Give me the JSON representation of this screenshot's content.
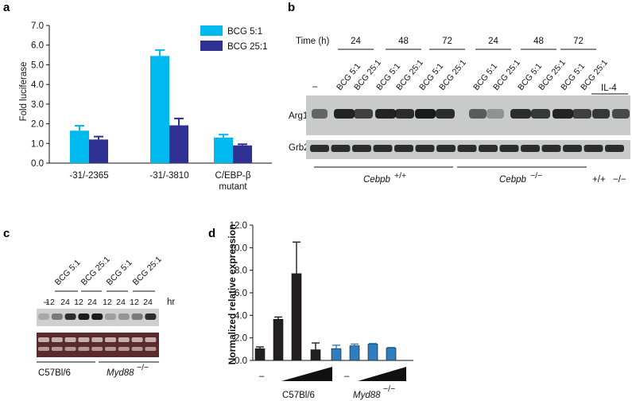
{
  "panels": {
    "a": "a",
    "b": "b",
    "c": "c",
    "d": "d"
  },
  "chart_data": [
    {
      "panel": "a",
      "type": "bar",
      "ylabel": "Fold luciferase",
      "ylim": [
        0,
        7
      ],
      "yticks": [
        "0.0",
        "1.0",
        "2.0",
        "3.0",
        "4.0",
        "5.0",
        "6.0",
        "7.0"
      ],
      "categories": [
        "-31/-2365",
        "-31/-3810",
        "C/EBP-β mutant"
      ],
      "category_lines": [
        [
          "-31/-2365"
        ],
        [
          "-31/-3810"
        ],
        [
          "C/EBP-β",
          "mutant"
        ]
      ],
      "legend_position": "top-right",
      "series": [
        {
          "name": "BCG 5:1",
          "color": "#00b9ef",
          "values": [
            1.65,
            5.45,
            1.3
          ],
          "errors": [
            0.25,
            0.3,
            0.15
          ]
        },
        {
          "name": "BCG 25:1",
          "color": "#2e3192",
          "values": [
            1.2,
            1.92,
            0.9
          ],
          "errors": [
            0.15,
            0.35,
            0.06
          ]
        }
      ]
    },
    {
      "panel": "d",
      "type": "bar",
      "ylabel": "Normalized relative expression",
      "ylim": [
        0,
        12
      ],
      "yticks": [
        "0.0",
        "2.0",
        "4.0",
        "6.0",
        "8.0",
        "10.0",
        "12.0"
      ],
      "groups": [
        "C57Bl/6",
        "Myd88 −/−"
      ],
      "series": [
        {
          "group": "C57Bl/6",
          "color": "#231f20",
          "values": [
            1.05,
            3.65,
            7.7,
            0.95
          ],
          "errors": [
            0.15,
            0.2,
            2.8,
            0.6
          ]
        },
        {
          "group": "Myd88 −/−",
          "color": "#2e7dc1",
          "values": [
            1.05,
            1.3,
            1.45,
            1.1
          ],
          "errors": [
            0.3,
            0.15,
            0.05,
            0.05
          ]
        }
      ],
      "dash_label": "–"
    }
  ],
  "blot_b": {
    "time_label": "Time (h)",
    "time_groups": [
      "24",
      "48",
      "72",
      "24",
      "48",
      "72"
    ],
    "dash": "–",
    "lanes": [
      "BCG 5:1",
      "BCG 25:1",
      "BCG 5:1",
      "BCG 25:1",
      "BCG 5:1",
      "BCG 25:1",
      "BCG 5:1",
      "BCG 25:1",
      "BCG 5:1",
      "BCG 25:1",
      "BCG 5:1",
      "BCG 25:1"
    ],
    "il4": "IL-4",
    "rows": [
      "Arg1",
      "Grb2"
    ],
    "genotype1": "Cebpb",
    "genotype1_sup": "+/+",
    "genotype2": "Cebpb",
    "genotype2_sup": "−/−",
    "wt_short": "+/+",
    "ko_short": "−/−"
  },
  "blot_c": {
    "groups": [
      "BCG 5:1",
      "BCG 25:1",
      "BCG 5:1",
      "BCG 25:1"
    ],
    "dash": "–",
    "times": [
      "12",
      "24",
      "12",
      "24",
      "12",
      "24",
      "12",
      "24"
    ],
    "hr": "hr",
    "strain1": "C57Bl/6",
    "strain2": "Myd88",
    "strain2_sup": "−/−"
  }
}
